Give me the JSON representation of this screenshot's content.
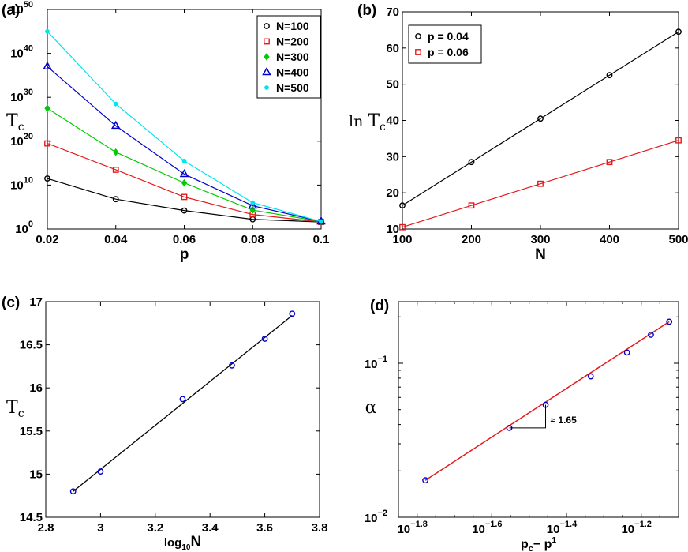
{
  "chart_data": [
    {
      "panel": "(a)",
      "type": "line",
      "xscale": "linear",
      "yscale": "log",
      "x": [
        0.02,
        0.04,
        0.06,
        0.08,
        0.1
      ],
      "xlim": [
        0.02,
        0.1
      ],
      "ylim_exponent": [
        0,
        50
      ],
      "xticks": [
        "0.02",
        "0.04",
        "0.06",
        "0.08",
        "0.1"
      ],
      "yticks": [
        {
          "base": "10",
          "exp": "0"
        },
        {
          "base": "10",
          "exp": "10"
        },
        {
          "base": "10",
          "exp": "20"
        },
        {
          "base": "10",
          "exp": "30"
        },
        {
          "base": "10",
          "exp": "40"
        },
        {
          "base": "10",
          "exp": "50"
        }
      ],
      "xlabel": "p",
      "ylabel": {
        "main": "T",
        "sub": "c"
      },
      "legend_position": "top-right",
      "series": [
        {
          "name": "N=100",
          "color": "#000000",
          "marker": "circle",
          "log10_values": [
            11.5,
            6.8,
            4.2,
            2.2,
            1.6
          ]
        },
        {
          "name": "N=200",
          "color": "#e41a1c",
          "marker": "square",
          "log10_values": [
            19.5,
            13.5,
            7.3,
            3.3,
            1.6
          ]
        },
        {
          "name": "N=300",
          "color": "#00cc00",
          "marker": "diamond",
          "log10_values": [
            27.5,
            17.5,
            10.5,
            4.3,
            1.7
          ]
        },
        {
          "name": "N=400",
          "color": "#0000cc",
          "marker": "triangle",
          "log10_values": [
            37.0,
            23.5,
            12.5,
            5.3,
            1.7
          ]
        },
        {
          "name": "N=500",
          "color": "#00e5ee",
          "marker": "star",
          "log10_values": [
            45.0,
            28.5,
            15.5,
            6.0,
            1.7
          ]
        }
      ]
    },
    {
      "panel": "(b)",
      "type": "line",
      "x": [
        100,
        200,
        300,
        400,
        500
      ],
      "xlim": [
        100,
        500
      ],
      "ylim": [
        10,
        70
      ],
      "xticks": [
        "100",
        "200",
        "300",
        "400",
        "500"
      ],
      "yticks": [
        "10",
        "20",
        "30",
        "40",
        "50",
        "60",
        "70"
      ],
      "xlabel": "N",
      "ylabel": {
        "pre": "ln",
        "main": "T",
        "sub": "c"
      },
      "legend_position": "top-left",
      "series": [
        {
          "name": "p = 0.04",
          "color": "#000000",
          "marker": "circle",
          "values": [
            16.5,
            28.5,
            40.5,
            52.5,
            64.5
          ]
        },
        {
          "name": "p = 0.06",
          "color": "#e41a1c",
          "marker": "square",
          "values": [
            10.5,
            16.5,
            22.5,
            28.5,
            34.5
          ]
        }
      ]
    },
    {
      "panel": "(c)",
      "type": "scatter",
      "xlim": [
        2.8,
        3.8
      ],
      "ylim": [
        14.5,
        17
      ],
      "xticks": [
        "2.8",
        "3",
        "3.2",
        "3.4",
        "3.6",
        "3.8"
      ],
      "yticks": [
        "14.5",
        "15",
        "15.5",
        "16",
        "16.5",
        "17"
      ],
      "xlabel": {
        "pre": "log",
        "sub": "10",
        "post": "N"
      },
      "ylabel": {
        "main": "T",
        "sub": "c"
      },
      "points": {
        "x": [
          2.9,
          3.0,
          3.3,
          3.48,
          3.6,
          3.7
        ],
        "y": [
          14.8,
          15.03,
          15.87,
          16.26,
          16.57,
          16.86
        ],
        "color": "#0000cc"
      },
      "fit_line": {
        "x": [
          2.9,
          3.7
        ],
        "y": [
          14.8,
          16.84
        ],
        "color": "#000000"
      }
    },
    {
      "panel": "(d)",
      "type": "scatter",
      "xscale": "log",
      "yscale": "log",
      "xlim_exponent": [
        -1.85,
        -1.1
      ],
      "ylim_exponent": [
        -2,
        -0.6
      ],
      "xticks": [
        {
          "base": "10",
          "exp": "−1.8"
        },
        {
          "base": "10",
          "exp": "−1.6"
        },
        {
          "base": "10",
          "exp": "−1.4"
        },
        {
          "base": "10",
          "exp": "−1.2"
        }
      ],
      "yticks": [
        {
          "base": "10",
          "exp": "−2"
        },
        {
          "base": "10",
          "exp": "−1"
        }
      ],
      "xlabel": {
        "a": "p",
        "a_sub": "c",
        "mid": "− p",
        "b_sup": "1"
      },
      "ylabel": "α",
      "points": {
        "log10_x": [
          -1.778,
          -1.553,
          -1.456,
          -1.335,
          -1.238,
          -1.174,
          -1.125
        ],
        "log10_y": [
          -1.76,
          -1.42,
          -1.27,
          -1.085,
          -0.93,
          -0.815,
          -0.73
        ],
        "color": "#0000cc"
      },
      "fit_line": {
        "log10_x": [
          -1.778,
          -1.125
        ],
        "log10_y": [
          -1.76,
          -0.73
        ],
        "color": "#e41a1c"
      },
      "slope_annotation": "≈ 1.65"
    }
  ],
  "labels": {
    "a": "(a)",
    "b": "(b)",
    "c": "(c)",
    "d": "(d)"
  }
}
